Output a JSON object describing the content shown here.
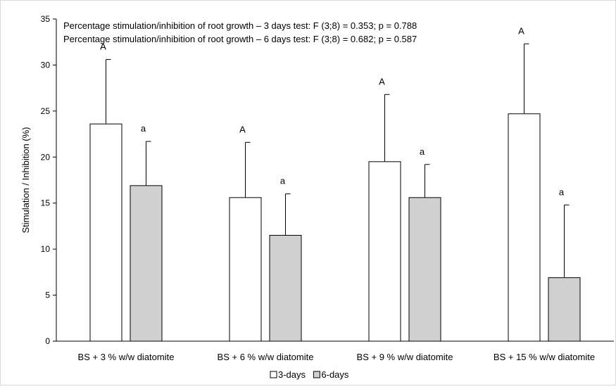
{
  "chart_data": {
    "type": "bar",
    "annotations": [
      "Percentage stimulation/inhibition of root growth – 3 days test: F (3;8) = 0.353; p = 0.788",
      "Percentage stimulation/inhibition of root growth – 6 days test: F (3;8) = 0.682; p = 0.587"
    ],
    "xlabel": "",
    "ylabel": "Stimulation / Inhibition  (%)",
    "ylim": [
      0,
      35
    ],
    "yticks": [
      0,
      5,
      10,
      15,
      20,
      25,
      30,
      35
    ],
    "grid": false,
    "legend_position": "bottom",
    "categories": [
      "BS + 3 % w/w diatomite",
      "BS + 6 % w/w diatomite",
      "BS + 9 % w/w diatomite",
      "BS + 15 % w/w diatomite"
    ],
    "series": [
      {
        "name": "3-days",
        "color": "#ffffff",
        "values": [
          23.6,
          15.6,
          19.5,
          24.7
        ],
        "error_upper": [
          30.6,
          21.6,
          26.8,
          32.3
        ],
        "letters": [
          "A",
          "A",
          "A",
          "A"
        ]
      },
      {
        "name": "6-days",
        "color": "#d0d0d0",
        "values": [
          16.9,
          11.5,
          15.6,
          6.9
        ],
        "error_upper": [
          21.7,
          16.0,
          19.2,
          14.8
        ],
        "letters": [
          "a",
          "a",
          "a",
          "a"
        ]
      }
    ]
  }
}
